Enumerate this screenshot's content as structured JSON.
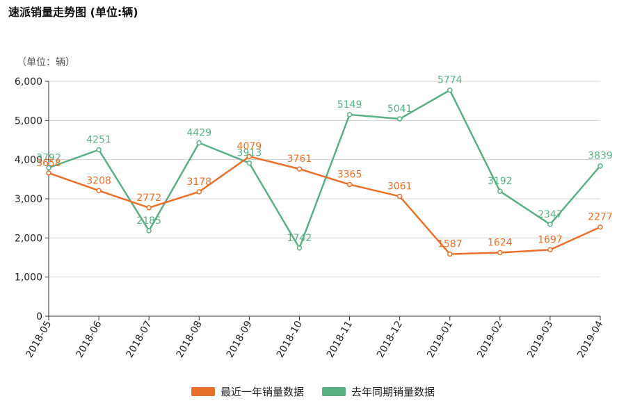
{
  "title": "速派销量走势图 (单位:辆)",
  "chart_data": {
    "type": "line",
    "unit_label": "（单位：辆）",
    "categories": [
      "2018-05",
      "2018-06",
      "2018-07",
      "2018-08",
      "2018-09",
      "2018-10",
      "2018-11",
      "2018-12",
      "2019-01",
      "2019-02",
      "2019-03",
      "2019-04"
    ],
    "ylim": [
      0,
      6000
    ],
    "yticks": [
      "0",
      "1,000",
      "2,000",
      "3,000",
      "4,000",
      "5,000",
      "6,000"
    ],
    "ytick_values": [
      0,
      1000,
      2000,
      3000,
      4000,
      5000,
      6000
    ],
    "grid": true,
    "legend_position": "bottom",
    "series": [
      {
        "name": "最近一年销量数据",
        "color": "#e8702a",
        "values": [
          3658,
          3208,
          2772,
          3178,
          4079,
          3761,
          3365,
          3061,
          1587,
          1624,
          1697,
          2277
        ]
      },
      {
        "name": "去年同期销量数据",
        "color": "#5aaf85",
        "values": [
          3792,
          4251,
          2185,
          4429,
          3913,
          1742,
          5149,
          5041,
          5774,
          3192,
          2347,
          3839
        ]
      }
    ]
  }
}
